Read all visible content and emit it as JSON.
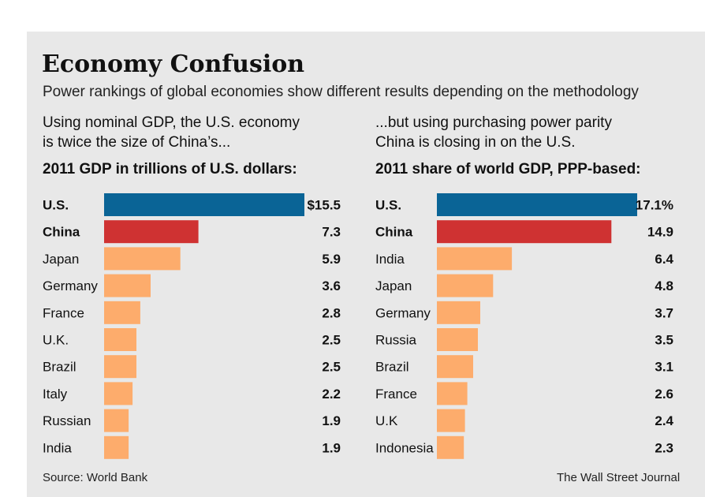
{
  "header": {
    "title": "Economy Confusion",
    "subtitle": "Power rankings of global economies show different results depending on the methodology"
  },
  "chart_data": [
    {
      "type": "bar",
      "orientation": "horizontal",
      "intro": [
        "Using nominal GDP, the U.S. economy",
        "is twice the size of China’s..."
      ],
      "title": "2011 GDP in trillions of U.S. dollars:",
      "categories": [
        "U.S.",
        "China",
        "Japan",
        "Germany",
        "France",
        "U.K.",
        "Brazil",
        "Italy",
        "Russian",
        "India"
      ],
      "values": [
        15.5,
        7.3,
        5.9,
        3.6,
        2.8,
        2.5,
        2.5,
        2.2,
        1.9,
        1.9
      ],
      "value_labels": [
        "$15.5",
        "7.3",
        "5.9",
        "3.6",
        "2.8",
        "2.5",
        "2.5",
        "2.2",
        "1.9",
        "1.9"
      ],
      "highlight": [
        "U.S.",
        "China"
      ],
      "xlim": [
        0,
        15.5
      ],
      "grid": false
    },
    {
      "type": "bar",
      "orientation": "horizontal",
      "intro": [
        "...but using purchasing power parity",
        "China is closing in on the U.S."
      ],
      "title": "2011 share of world GDP, PPP-based:",
      "categories": [
        "U.S.",
        "China",
        "India",
        "Japan",
        "Germany",
        "Russia",
        "Brazil",
        "France",
        "U.K",
        "Indonesia"
      ],
      "values": [
        17.1,
        14.9,
        6.4,
        4.8,
        3.7,
        3.5,
        3.1,
        2.6,
        2.4,
        2.3
      ],
      "value_labels": [
        "17.1%",
        "14.9",
        "6.4",
        "4.8",
        "3.7",
        "3.5",
        "3.1",
        "2.6",
        "2.4",
        "2.3"
      ],
      "highlight": [
        "U.S.",
        "China"
      ],
      "xlim": [
        0,
        17.1
      ],
      "grid": false
    }
  ],
  "colors": {
    "us": "#0a6496",
    "china": "#cf3232",
    "other": "#fdac6c",
    "background": "#e8e8e8"
  },
  "footer": {
    "source": "Source: World Bank",
    "credit": "The Wall Street Journal"
  }
}
